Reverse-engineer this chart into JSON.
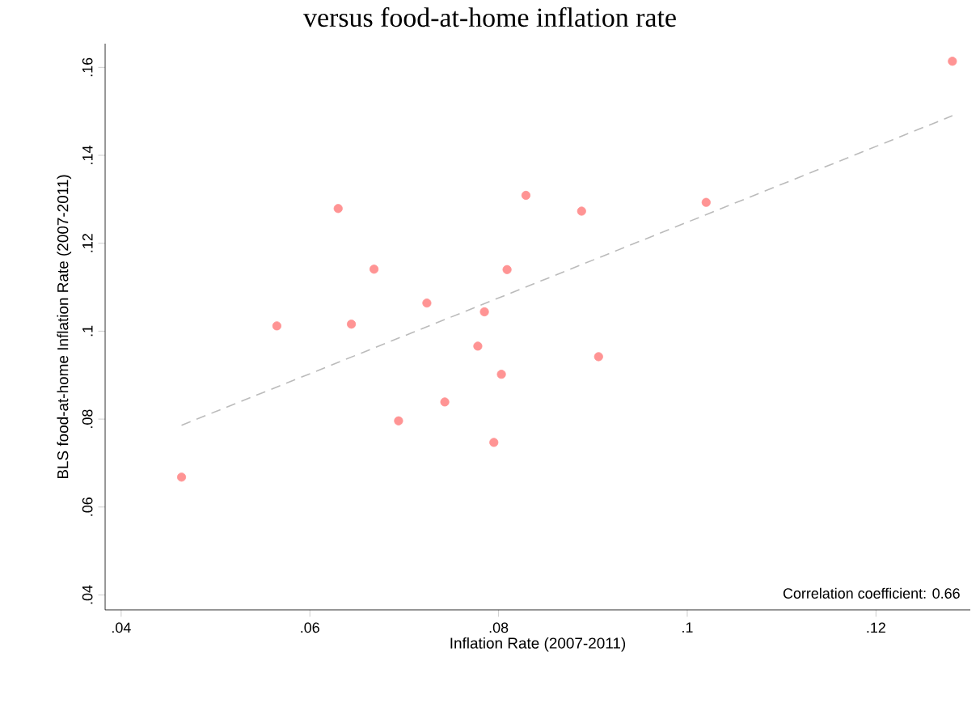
{
  "chart_data": {
    "type": "scatter",
    "title": "versus food-at-home inflation rate",
    "xlabel": "Inflation Rate (2007-2011)",
    "ylabel": "BLS food-at-home Inflation Rate (2007-2011)",
    "xlim": [
      0.0383,
      0.13
    ],
    "ylim": [
      0.0366,
      0.1654
    ],
    "xticks": [
      {
        "value": 0.04,
        "label": ".04"
      },
      {
        "value": 0.06,
        "label": ".06"
      },
      {
        "value": 0.08,
        "label": ".08"
      },
      {
        "value": 0.1,
        "label": ".1"
      },
      {
        "value": 0.12,
        "label": ".12"
      }
    ],
    "yticks": [
      {
        "value": 0.04,
        "label": ".04"
      },
      {
        "value": 0.06,
        "label": ".06"
      },
      {
        "value": 0.08,
        "label": ".08"
      },
      {
        "value": 0.1,
        "label": ".1"
      },
      {
        "value": 0.12,
        "label": ".12"
      },
      {
        "value": 0.14,
        "label": ".14"
      },
      {
        "value": 0.16,
        "label": ".16"
      }
    ],
    "grid": false,
    "series": [
      {
        "color": "#ff9494",
        "marker": "circle",
        "x": [
          0.0464,
          0.0565,
          0.063,
          0.0644,
          0.0668,
          0.0694,
          0.0724,
          0.0743,
          0.0778,
          0.0785,
          0.0795,
          0.0803,
          0.0809,
          0.0829,
          0.0888,
          0.0906,
          0.102,
          0.1281
        ],
        "values": [
          0.0668,
          0.1012,
          0.1279,
          0.1016,
          0.1141,
          0.0796,
          0.1064,
          0.0839,
          0.0966,
          0.1044,
          0.0747,
          0.0902,
          0.114,
          0.1309,
          0.1273,
          0.0942,
          0.1293,
          0.1614
        ]
      },
      {
        "type": "line",
        "color": "#bbbbbb",
        "line_style": "dashed",
        "marker": "none",
        "x": [
          0.0464,
          0.1281
        ],
        "values": [
          0.0786,
          0.149
        ]
      }
    ],
    "annotations": [
      "Correlation coefficient:    0.66"
    ]
  }
}
